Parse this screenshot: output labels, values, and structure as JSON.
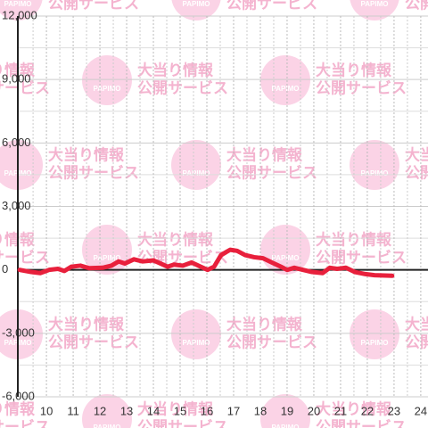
{
  "chart_data": {
    "type": "line",
    "watermark": {
      "text1": "大当り情報",
      "text2": "公開サービス",
      "logo": "PAPIMO"
    },
    "x": [
      9.0,
      9.43,
      9.77,
      10.1,
      10.43,
      10.67,
      10.93,
      11.27,
      11.6,
      12.1,
      12.43,
      12.7,
      12.93,
      13.27,
      13.6,
      14.0,
      14.27,
      14.53,
      14.77,
      15.1,
      15.43,
      15.77,
      16.03,
      16.27,
      16.53,
      16.87,
      17.13,
      17.43,
      17.77,
      18.1,
      18.43,
      18.77,
      19.0,
      19.27,
      19.6,
      19.93,
      20.33,
      20.6,
      20.87,
      21.2,
      21.53,
      21.93,
      22.27,
      22.93
    ],
    "series": [
      {
        "color": "#e8203c",
        "values": [
          0,
          -100,
          -150,
          0,
          50,
          -50,
          150,
          200,
          80,
          100,
          200,
          400,
          300,
          500,
          400,
          450,
          300,
          150,
          250,
          200,
          350,
          150,
          0,
          150,
          700,
          950,
          900,
          700,
          600,
          550,
          350,
          150,
          0,
          100,
          0,
          -100,
          -150,
          100,
          50,
          100,
          -100,
          -200,
          -250,
          -280
        ]
      }
    ],
    "xlim": [
      8.93,
      24.27
    ],
    "xticks": [
      10,
      11,
      12,
      13,
      14,
      15,
      16,
      17,
      18,
      19,
      20,
      21,
      22,
      23,
      24
    ],
    "ylim": [
      -6000,
      12000
    ],
    "yticks": [
      {
        "value": -6000,
        "label": "-6,000"
      },
      {
        "value": -3000,
        "label": "-3,000"
      },
      0,
      {
        "value": 3000,
        "label": "3,000"
      },
      {
        "value": 6000,
        "label": "6,000"
      },
      {
        "value": 9000,
        "label": "9,000"
      },
      {
        "value": 12000,
        "label": "12,000"
      }
    ],
    "grid": true
  }
}
